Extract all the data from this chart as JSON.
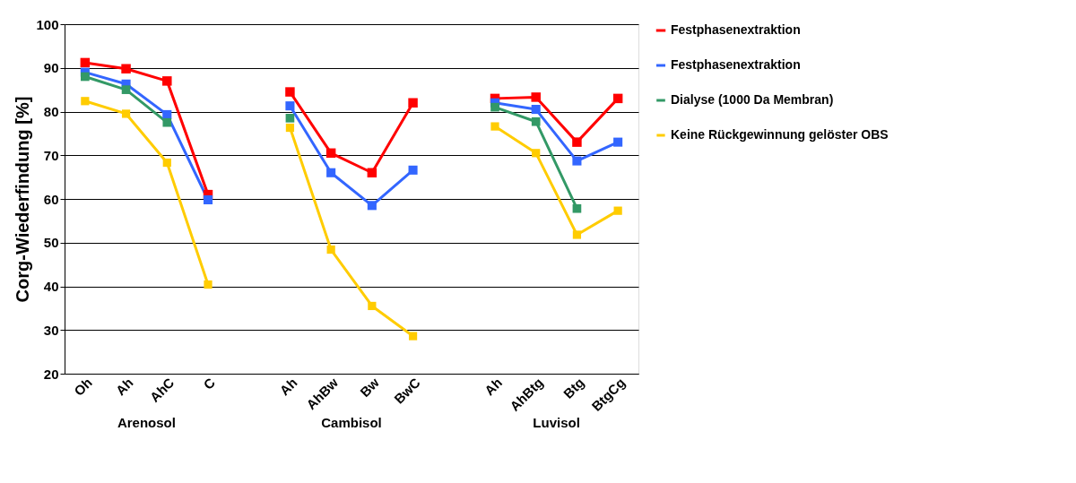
{
  "chart_data": {
    "type": "line",
    "categories": [
      "Oh",
      "Ah",
      "AhC",
      "C",
      null,
      "Ah",
      "AhBw",
      "Bw",
      "BwC",
      null,
      "Ah",
      "AhBtg",
      "Btg",
      "BtgCg"
    ],
    "series": [
      {
        "name": "Festphasenextraktion",
        "color": "#ff0000",
        "values": [
          91.2,
          89.8,
          87,
          61,
          null,
          84.5,
          70.5,
          66,
          82,
          null,
          83,
          83.3,
          73,
          83
        ]
      },
      {
        "name": "Festphasenextraktion",
        "color": "#3366ff",
        "values": [
          89,
          86.3,
          79.3,
          59.8,
          null,
          81.3,
          66,
          58.5,
          66.6,
          null,
          82,
          80.5,
          68.7,
          73
        ]
      },
      {
        "name": "Dialyse (1000 Da Membran)",
        "color": "#339966",
        "values": [
          88,
          85,
          77.5,
          null,
          null,
          78.5,
          null,
          null,
          null,
          null,
          81,
          77.7,
          57.8,
          null
        ]
      },
      {
        "name": "Keine Rückgewinnung gelöster OBS",
        "color": "#ffcc00",
        "values": [
          82.4,
          79.5,
          68.3,
          40.4,
          null,
          76.3,
          48.4,
          35.5,
          28.6,
          null,
          76.6,
          70.5,
          51.8,
          57.3
        ]
      }
    ],
    "ylabel": "Corg-Wiederfindung  [%]",
    "ylim": [
      20,
      100
    ],
    "yticks": [
      20,
      30,
      40,
      50,
      60,
      70,
      80,
      90,
      100
    ],
    "annotations": [
      "Arenosol",
      "Cambisol",
      "Luvisol"
    ],
    "grid": "y",
    "legend": "right",
    "marker": "square",
    "line_style": "solid"
  }
}
